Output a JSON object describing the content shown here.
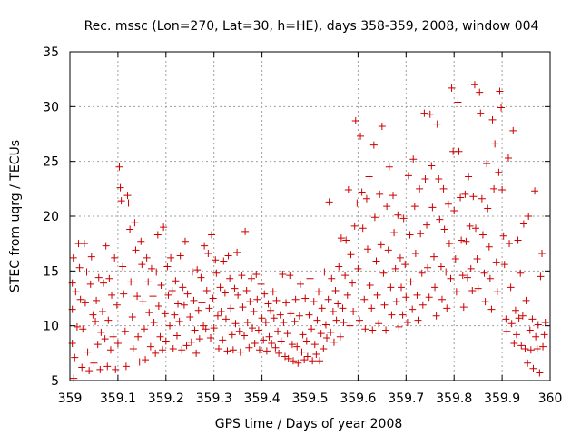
{
  "chart_data": {
    "type": "scatter",
    "title": "Rec. mssc (Lon=270, Lat=30, h=HE), days 358-359, 2008, window 004",
    "xlabel": "GPS time / Days of year 2008",
    "ylabel": "STEC from uqrg / TECUs",
    "xlim": [
      359,
      360
    ],
    "ylim": [
      5,
      35
    ],
    "xticks": [
      "359",
      "359.1",
      "359.2",
      "359.3",
      "359.4",
      "359.5",
      "359.6",
      "359.7",
      "359.8",
      "359.9",
      "360"
    ],
    "yticks": [
      "5",
      "10",
      "15",
      "20",
      "25",
      "30",
      "35"
    ],
    "grid": true,
    "marker": "+",
    "color": "#cc0000",
    "points": [
      [
        359.005,
        13.9
      ],
      [
        359.005,
        11.5
      ],
      [
        359.005,
        8.4
      ],
      [
        359.007,
        16.2
      ],
      [
        359.008,
        5.2
      ],
      [
        359.01,
        7.1
      ],
      [
        359.012,
        13.1
      ],
      [
        359.015,
        9.9
      ],
      [
        359.018,
        17.5
      ],
      [
        359.02,
        15.3
      ],
      [
        359.022,
        12.4
      ],
      [
        359.025,
        6.2
      ],
      [
        359.027,
        9.7
      ],
      [
        359.03,
        17.5
      ],
      [
        359.032,
        12.1
      ],
      [
        359.035,
        14.9
      ],
      [
        359.037,
        7.6
      ],
      [
        359.04,
        5.9
      ],
      [
        359.043,
        13.8
      ],
      [
        359.045,
        16.3
      ],
      [
        359.048,
        11.0
      ],
      [
        359.05,
        6.6
      ],
      [
        359.053,
        10.4
      ],
      [
        359.055,
        12.3
      ],
      [
        359.058,
        8.3
      ],
      [
        359.06,
        14.4
      ],
      [
        359.063,
        6.0
      ],
      [
        359.065,
        9.4
      ],
      [
        359.068,
        11.3
      ],
      [
        359.07,
        13.9
      ],
      [
        359.073,
        8.8
      ],
      [
        359.075,
        17.3
      ],
      [
        359.078,
        6.3
      ],
      [
        359.08,
        10.5
      ],
      [
        359.082,
        14.3
      ],
      [
        359.085,
        7.8
      ],
      [
        359.087,
        12.8
      ],
      [
        359.09,
        9.0
      ],
      [
        359.093,
        16.2
      ],
      [
        359.095,
        6.0
      ],
      [
        359.098,
        11.9
      ],
      [
        359.1,
        8.4
      ],
      [
        359.103,
        24.5
      ],
      [
        359.105,
        22.6
      ],
      [
        359.107,
        21.4
      ],
      [
        359.11,
        15.4
      ],
      [
        359.112,
        12.9
      ],
      [
        359.115,
        9.5
      ],
      [
        359.117,
        6.3
      ],
      [
        359.12,
        21.9
      ],
      [
        359.122,
        21.2
      ],
      [
        359.125,
        18.8
      ],
      [
        359.127,
        14.0
      ],
      [
        359.13,
        10.8
      ],
      [
        359.132,
        7.9
      ],
      [
        359.135,
        19.4
      ],
      [
        359.137,
        16.9
      ],
      [
        359.14,
        12.7
      ],
      [
        359.142,
        9.0
      ],
      [
        359.145,
        6.7
      ],
      [
        359.148,
        17.7
      ],
      [
        359.15,
        15.6
      ],
      [
        359.152,
        12.2
      ],
      [
        359.155,
        9.7
      ],
      [
        359.157,
        6.9
      ],
      [
        359.16,
        16.2
      ],
      [
        359.163,
        14.0
      ],
      [
        359.165,
        11.2
      ],
      [
        359.168,
        8.1
      ],
      [
        359.17,
        15.2
      ],
      [
        359.173,
        12.7
      ],
      [
        359.175,
        10.3
      ],
      [
        359.178,
        7.5
      ],
      [
        359.18,
        14.9
      ],
      [
        359.183,
        18.3
      ],
      [
        359.185,
        11.8
      ],
      [
        359.188,
        9.0
      ],
      [
        359.19,
        13.7
      ],
      [
        359.193,
        7.8
      ],
      [
        359.195,
        19.0
      ],
      [
        359.198,
        11.1
      ],
      [
        359.2,
        8.6
      ],
      [
        359.203,
        15.4
      ],
      [
        359.205,
        12.8
      ],
      [
        359.208,
        10.0
      ],
      [
        359.21,
        16.2
      ],
      [
        359.213,
        13.2
      ],
      [
        359.215,
        7.9
      ],
      [
        359.218,
        11.0
      ],
      [
        359.22,
        14.1
      ],
      [
        359.223,
        9.1
      ],
      [
        359.225,
        12.0
      ],
      [
        359.228,
        10.4
      ],
      [
        359.23,
        16.4
      ],
      [
        359.233,
        7.8
      ],
      [
        359.235,
        13.5
      ],
      [
        359.238,
        11.9
      ],
      [
        359.24,
        17.7
      ],
      [
        359.243,
        8.2
      ],
      [
        359.245,
        12.9
      ],
      [
        359.25,
        10.8
      ],
      [
        359.253,
        8.5
      ],
      [
        359.255,
        14.9
      ],
      [
        359.258,
        12.3
      ],
      [
        359.26,
        9.6
      ],
      [
        359.263,
        7.5
      ],
      [
        359.265,
        15.1
      ],
      [
        359.268,
        11.4
      ],
      [
        359.27,
        8.8
      ],
      [
        359.273,
        14.4
      ],
      [
        359.275,
        12.1
      ],
      [
        359.278,
        10.0
      ],
      [
        359.28,
        17.3
      ],
      [
        359.283,
        9.7
      ],
      [
        359.285,
        13.2
      ],
      [
        359.288,
        16.6
      ],
      [
        359.29,
        11.6
      ],
      [
        359.293,
        8.9
      ],
      [
        359.295,
        18.3
      ],
      [
        359.298,
        12.5
      ],
      [
        359.3,
        9.8
      ],
      [
        359.303,
        16.0
      ],
      [
        359.305,
        14.8
      ],
      [
        359.308,
        10.9
      ],
      [
        359.31,
        7.9
      ],
      [
        359.313,
        13.5
      ],
      [
        359.315,
        11.3
      ],
      [
        359.318,
        8.7
      ],
      [
        359.32,
        15.9
      ],
      [
        359.323,
        13.0
      ],
      [
        359.325,
        10.6
      ],
      [
        359.328,
        7.7
      ],
      [
        359.33,
        16.4
      ],
      [
        359.333,
        14.3
      ],
      [
        359.335,
        11.6
      ],
      [
        359.338,
        9.2
      ],
      [
        359.34,
        7.8
      ],
      [
        359.343,
        13.4
      ],
      [
        359.345,
        10.2
      ],
      [
        359.348,
        16.7
      ],
      [
        359.35,
        12.8
      ],
      [
        359.353,
        9.5
      ],
      [
        359.355,
        7.6
      ],
      [
        359.358,
        14.6
      ],
      [
        359.36,
        11.7
      ],
      [
        359.363,
        9.1
      ],
      [
        359.365,
        18.6
      ],
      [
        359.368,
        13.2
      ],
      [
        359.37,
        10.3
      ],
      [
        359.373,
        8.0
      ],
      [
        359.375,
        12.2
      ],
      [
        359.378,
        14.3
      ],
      [
        359.38,
        9.8
      ],
      [
        359.383,
        11.3
      ],
      [
        359.385,
        8.4
      ],
      [
        359.388,
        14.7
      ],
      [
        359.39,
        12.4
      ],
      [
        359.393,
        9.6
      ],
      [
        359.395,
        7.8
      ],
      [
        359.398,
        13.8
      ],
      [
        359.4,
        10.7
      ],
      [
        359.403,
        8.7
      ],
      [
        359.405,
        12.9
      ],
      [
        359.408,
        10.3
      ],
      [
        359.41,
        7.7
      ],
      [
        359.413,
        12.0
      ],
      [
        359.415,
        9.0
      ],
      [
        359.418,
        11.4
      ],
      [
        359.42,
        8.4
      ],
      [
        359.423,
        13.1
      ],
      [
        359.425,
        10.7
      ],
      [
        359.428,
        8.0
      ],
      [
        359.43,
        12.3
      ],
      [
        359.433,
        9.5
      ],
      [
        359.435,
        7.5
      ],
      [
        359.438,
        11.0
      ],
      [
        359.44,
        8.6
      ],
      [
        359.443,
        14.7
      ],
      [
        359.445,
        10.3
      ],
      [
        359.448,
        7.2
      ],
      [
        359.45,
        12.1
      ],
      [
        359.453,
        9.3
      ],
      [
        359.455,
        7.0
      ],
      [
        359.458,
        14.6
      ],
      [
        359.46,
        11.1
      ],
      [
        359.463,
        8.3
      ],
      [
        359.465,
        6.8
      ],
      [
        359.468,
        10.4
      ],
      [
        359.47,
        12.4
      ],
      [
        359.473,
        8.1
      ],
      [
        359.475,
        6.6
      ],
      [
        359.478,
        10.9
      ],
      [
        359.48,
        13.8
      ],
      [
        359.483,
        7.6
      ],
      [
        359.485,
        9.2
      ],
      [
        359.488,
        6.9
      ],
      [
        359.49,
        12.5
      ],
      [
        359.493,
        8.6
      ],
      [
        359.495,
        7.2
      ],
      [
        359.498,
        11.0
      ],
      [
        359.5,
        14.3
      ],
      [
        359.503,
        9.7
      ],
      [
        359.505,
        6.8
      ],
      [
        359.508,
        12.2
      ],
      [
        359.51,
        8.3
      ],
      [
        359.513,
        7.4
      ],
      [
        359.515,
        10.5
      ],
      [
        359.518,
        13.1
      ],
      [
        359.52,
        6.8
      ],
      [
        359.523,
        9.3
      ],
      [
        359.525,
        11.6
      ],
      [
        359.528,
        7.9
      ],
      [
        359.53,
        14.9
      ],
      [
        359.533,
        10.1
      ],
      [
        359.535,
        8.9
      ],
      [
        359.538,
        12.4
      ],
      [
        359.54,
        21.3
      ],
      [
        359.543,
        9.4
      ],
      [
        359.545,
        14.3
      ],
      [
        359.548,
        11.3
      ],
      [
        359.55,
        8.5
      ],
      [
        359.553,
        13.2
      ],
      [
        359.555,
        10.5
      ],
      [
        359.558,
        12.0
      ],
      [
        359.56,
        15.4
      ],
      [
        359.563,
        9.0
      ],
      [
        359.565,
        18.0
      ],
      [
        359.568,
        11.6
      ],
      [
        359.57,
        10.3
      ],
      [
        359.573,
        14.6
      ],
      [
        359.575,
        17.8
      ],
      [
        359.578,
        12.8
      ],
      [
        359.58,
        22.4
      ],
      [
        359.583,
        10.0
      ],
      [
        359.585,
        16.5
      ],
      [
        359.588,
        13.9
      ],
      [
        359.59,
        11.3
      ],
      [
        359.593,
        19.1
      ],
      [
        359.595,
        28.7
      ],
      [
        359.598,
        21.2
      ],
      [
        359.6,
        15.2
      ],
      [
        359.603,
        10.5
      ],
      [
        359.605,
        27.3
      ],
      [
        359.608,
        22.2
      ],
      [
        359.61,
        18.9
      ],
      [
        359.613,
        12.4
      ],
      [
        359.615,
        9.7
      ],
      [
        359.618,
        21.6
      ],
      [
        359.62,
        17.0
      ],
      [
        359.623,
        23.6
      ],
      [
        359.625,
        13.7
      ],
      [
        359.628,
        11.6
      ],
      [
        359.63,
        9.6
      ],
      [
        359.633,
        26.5
      ],
      [
        359.635,
        19.9
      ],
      [
        359.638,
        15.9
      ],
      [
        359.64,
        12.8
      ],
      [
        359.643,
        10.2
      ],
      [
        359.645,
        22.0
      ],
      [
        359.648,
        17.4
      ],
      [
        359.65,
        28.2
      ],
      [
        359.653,
        14.8
      ],
      [
        359.655,
        11.9
      ],
      [
        359.658,
        9.6
      ],
      [
        359.66,
        20.9
      ],
      [
        359.663,
        16.9
      ],
      [
        359.665,
        24.5
      ],
      [
        359.668,
        13.5
      ],
      [
        359.67,
        11.0
      ],
      [
        359.673,
        21.9
      ],
      [
        359.675,
        18.5
      ],
      [
        359.678,
        15.2
      ],
      [
        359.68,
        12.2
      ],
      [
        359.683,
        20.1
      ],
      [
        359.685,
        9.9
      ],
      [
        359.688,
        16.2
      ],
      [
        359.69,
        13.5
      ],
      [
        359.693,
        11.0
      ],
      [
        359.695,
        19.8
      ],
      [
        359.698,
        15.6
      ],
      [
        359.7,
        12.6
      ],
      [
        359.703,
        10.3
      ],
      [
        359.705,
        23.7
      ],
      [
        359.708,
        18.3
      ],
      [
        359.71,
        14.0
      ],
      [
        359.713,
        11.5
      ],
      [
        359.715,
        25.2
      ],
      [
        359.718,
        20.9
      ],
      [
        359.72,
        16.6
      ],
      [
        359.723,
        12.8
      ],
      [
        359.725,
        10.5
      ],
      [
        359.728,
        22.5
      ],
      [
        359.73,
        18.4
      ],
      [
        359.733,
        14.8
      ],
      [
        359.735,
        11.9
      ],
      [
        359.738,
        29.4
      ],
      [
        359.74,
        23.4
      ],
      [
        359.743,
        19.2
      ],
      [
        359.745,
        15.3
      ],
      [
        359.748,
        12.6
      ],
      [
        359.75,
        29.3
      ],
      [
        359.753,
        24.6
      ],
      [
        359.755,
        20.8
      ],
      [
        359.758,
        16.3
      ],
      [
        359.76,
        13.5
      ],
      [
        359.763,
        10.9
      ],
      [
        359.765,
        28.4
      ],
      [
        359.768,
        23.4
      ],
      [
        359.77,
        19.7
      ],
      [
        359.773,
        15.4
      ],
      [
        359.775,
        12.4
      ],
      [
        359.778,
        22.5
      ],
      [
        359.78,
        18.8
      ],
      [
        359.783,
        14.9
      ],
      [
        359.785,
        11.6
      ],
      [
        359.788,
        21.1
      ],
      [
        359.79,
        17.5
      ],
      [
        359.793,
        14.3
      ],
      [
        359.795,
        31.7
      ],
      [
        359.798,
        25.9
      ],
      [
        359.8,
        20.5
      ],
      [
        359.803,
        16.1
      ],
      [
        359.805,
        13.1
      ],
      [
        359.808,
        30.4
      ],
      [
        359.81,
        25.9
      ],
      [
        359.813,
        21.7
      ],
      [
        359.815,
        17.8
      ],
      [
        359.818,
        14.6
      ],
      [
        359.82,
        11.7
      ],
      [
        359.823,
        22.0
      ],
      [
        359.825,
        17.7
      ],
      [
        359.828,
        14.4
      ],
      [
        359.83,
        23.6
      ],
      [
        359.833,
        19.1
      ],
      [
        359.835,
        15.2
      ],
      [
        359.838,
        13.2
      ],
      [
        359.84,
        21.8
      ],
      [
        359.843,
        32.0
      ],
      [
        359.845,
        18.9
      ],
      [
        359.848,
        16.1
      ],
      [
        359.85,
        13.4
      ],
      [
        359.853,
        31.3
      ],
      [
        359.855,
        29.4
      ],
      [
        359.858,
        21.6
      ],
      [
        359.86,
        18.3
      ],
      [
        359.863,
        14.8
      ],
      [
        359.865,
        12.2
      ],
      [
        359.868,
        24.8
      ],
      [
        359.87,
        20.7
      ],
      [
        359.873,
        17.2
      ],
      [
        359.875,
        14.3
      ],
      [
        359.878,
        11.5
      ],
      [
        359.88,
        28.8
      ],
      [
        359.883,
        22.5
      ],
      [
        359.885,
        26.6
      ],
      [
        359.888,
        15.8
      ],
      [
        359.89,
        13.1
      ],
      [
        359.893,
        24.0
      ],
      [
        359.895,
        31.4
      ],
      [
        359.898,
        29.9
      ],
      [
        359.9,
        22.4
      ],
      [
        359.903,
        18.2
      ],
      [
        359.905,
        15.6
      ],
      [
        359.908,
        10.6
      ],
      [
        359.91,
        9.5
      ],
      [
        359.913,
        25.3
      ],
      [
        359.915,
        17.5
      ],
      [
        359.918,
        13.5
      ],
      [
        359.92,
        10.2
      ],
      [
        359.923,
        27.8
      ],
      [
        359.925,
        8.4
      ],
      [
        359.928,
        11.4
      ],
      [
        359.93,
        9.2
      ],
      [
        359.933,
        17.8
      ],
      [
        359.935,
        10.7
      ],
      [
        359.938,
        14.8
      ],
      [
        359.94,
        8.2
      ],
      [
        359.943,
        10.9
      ],
      [
        359.945,
        19.3
      ],
      [
        359.948,
        7.9
      ],
      [
        359.95,
        12.3
      ],
      [
        359.953,
        6.6
      ],
      [
        359.955,
        20.0
      ],
      [
        359.958,
        9.6
      ],
      [
        359.96,
        7.8
      ],
      [
        359.963,
        10.6
      ],
      [
        359.965,
        6.1
      ],
      [
        359.968,
        22.3
      ],
      [
        359.97,
        9.0
      ],
      [
        359.973,
        7.9
      ],
      [
        359.975,
        10.1
      ],
      [
        359.978,
        5.7
      ],
      [
        359.98,
        14.5
      ],
      [
        359.983,
        16.6
      ],
      [
        359.985,
        8.1
      ],
      [
        359.988,
        9.2
      ],
      [
        359.99,
        10.3
      ]
    ]
  }
}
